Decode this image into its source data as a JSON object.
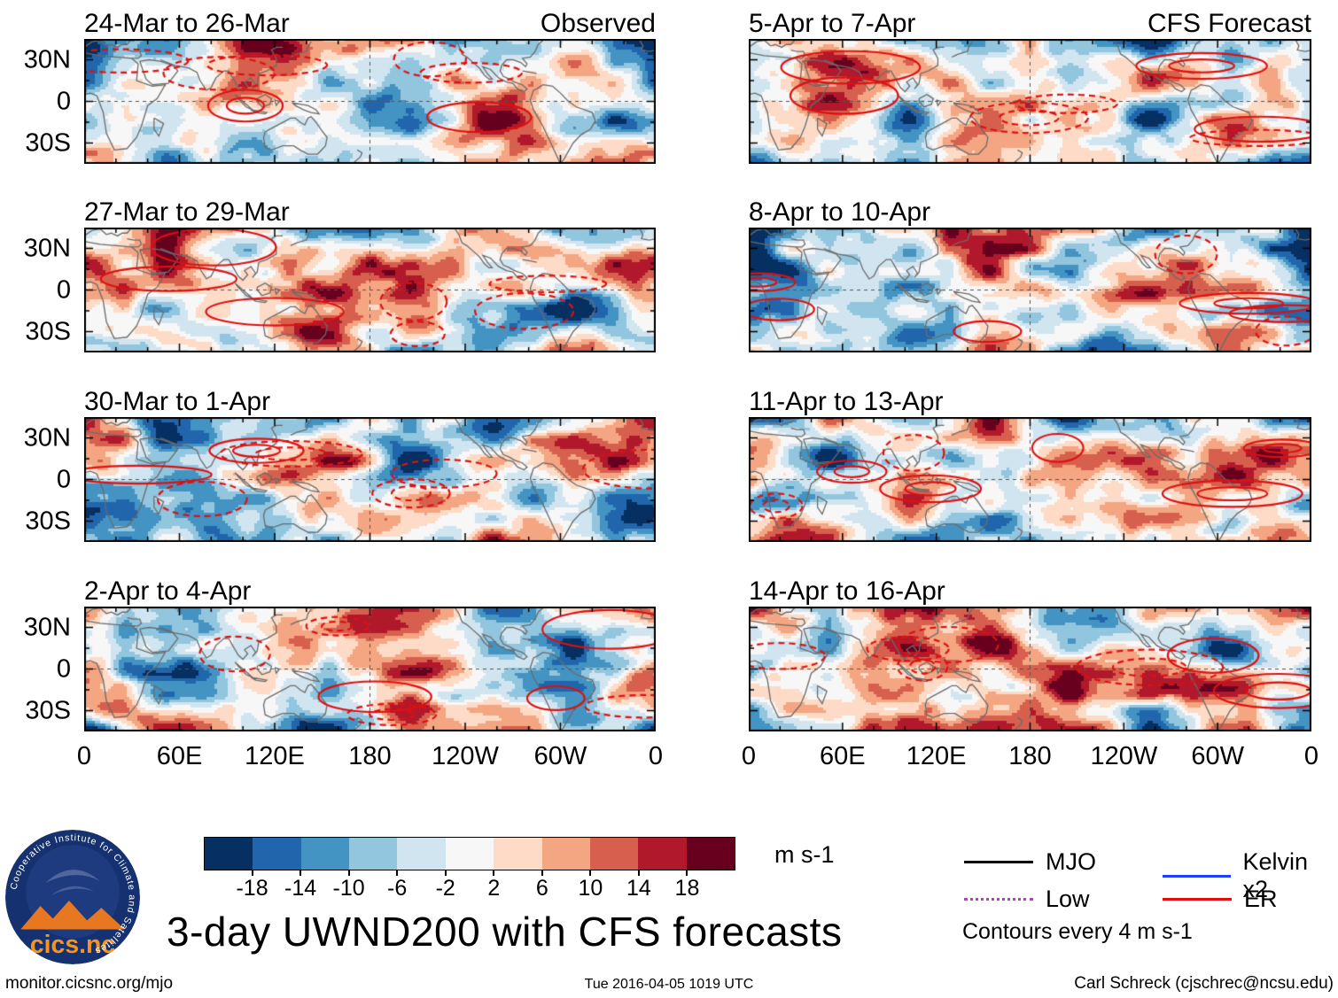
{
  "chart_data": {
    "type": "heatmap",
    "title": "3-day UWND200 with CFS forecasts",
    "variable": "UWND200 anomalies",
    "units": "m s-1",
    "column_headers": [
      "Observed",
      "CFS Forecast"
    ],
    "panels": [
      {
        "title": "24-Mar to 26-Mar",
        "corner_label": "Observed",
        "column": "Observed"
      },
      {
        "title": "27-Mar to 29-Mar",
        "column": "Observed"
      },
      {
        "title": "30-Mar to 1-Apr",
        "column": "Observed"
      },
      {
        "title": "2-Apr to 4-Apr",
        "column": "Observed"
      },
      {
        "title": "5-Apr to 7-Apr",
        "corner_label": "CFS Forecast",
        "column": "CFS Forecast"
      },
      {
        "title": "8-Apr to 10-Apr",
        "column": "CFS Forecast"
      },
      {
        "title": "11-Apr to 13-Apr",
        "column": "CFS Forecast"
      },
      {
        "title": "14-Apr to 16-Apr",
        "column": "CFS Forecast"
      }
    ],
    "x_ticks": [
      "0",
      "60E",
      "120E",
      "180",
      "120W",
      "60W",
      "0"
    ],
    "y_ticks": [
      "30N",
      "0",
      "30S"
    ],
    "lon_range": [
      0,
      360
    ],
    "lat_range": [
      45,
      -45
    ],
    "colorbar": {
      "ticks": [
        "-18",
        "-14",
        "-10",
        "-6",
        "-2",
        "2",
        "6",
        "10",
        "14",
        "18"
      ],
      "units_label": "m s-1",
      "colors": [
        "#053061",
        "#2166ac",
        "#4393c3",
        "#92c5de",
        "#d1e5f0",
        "#f7f7f7",
        "#fddbc7",
        "#f4a582",
        "#d6604d",
        "#b2182b",
        "#67001f"
      ]
    },
    "legend": [
      {
        "label": "MJO",
        "color": "#000000",
        "style": "solid"
      },
      {
        "label": "Low",
        "color": "#a64ca6",
        "style": "dotted"
      },
      {
        "label": "Kelvin x2",
        "color": "#1f3fff",
        "style": "solid"
      },
      {
        "label": "ER",
        "color": "#e01010",
        "style": "solid"
      }
    ],
    "contour_note": "Contours every 4 m s-1"
  },
  "logo": {
    "name": "cics.nc",
    "ring_text": "Cooperative Institute for Climate and Satellites"
  },
  "footer": {
    "left": "monitor.cicsnc.org/mjo",
    "center": "Tue 2016-04-05 1019 UTC",
    "right": "Carl Schreck (cjschrec@ncsu.edu)"
  }
}
